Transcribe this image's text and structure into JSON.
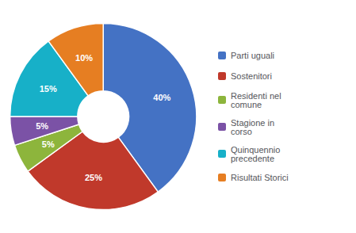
{
  "chart_data": {
    "type": "pie",
    "categories": [
      "Parti uguali",
      "Sostenitori",
      "Residenti nel\ncomune",
      "Stagione in\ncorso",
      "Quinquennio\nprecedente",
      "Risultati Storici"
    ],
    "values": [
      40,
      25,
      5,
      5,
      15,
      10
    ],
    "value_labels": [
      "40%",
      "25%",
      "5%",
      "5%",
      "15%",
      "10%"
    ],
    "colors": [
      "#4472C4",
      "#C0392B",
      "#8DB53C",
      "#7B52A6",
      "#17B0C8",
      "#E67E22"
    ],
    "data_labels": true,
    "legend": "right"
  }
}
